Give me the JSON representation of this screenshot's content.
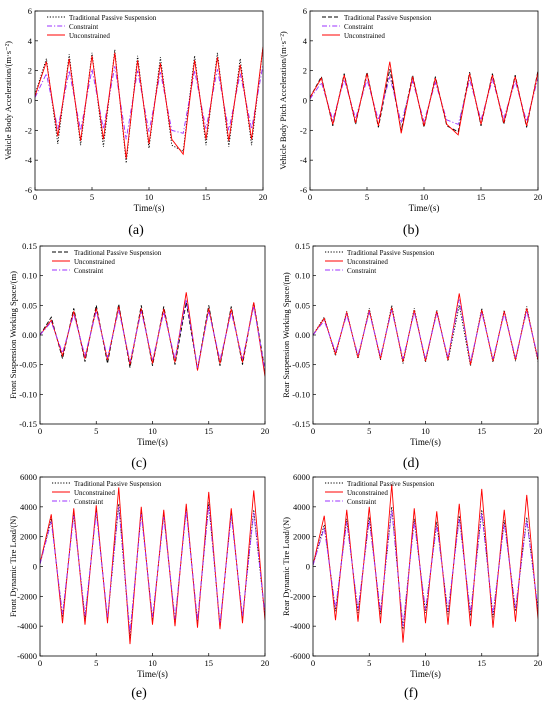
{
  "colors": {
    "passive": "#000000",
    "constraint": "#9b30ff",
    "unconstrained": "#ff0000",
    "axis": "#000000"
  },
  "chart_data": [
    {
      "id": "a",
      "type": "line",
      "panel_label": "(a)",
      "xlabel": "Time/(s)",
      "ylabel": "Vehicle Body Acceleration/(m·s⁻²)",
      "xlim": [
        0,
        20
      ],
      "ylim": [
        -6,
        6
      ],
      "xticks": [
        0,
        5,
        10,
        15,
        20
      ],
      "yticks": [
        -6,
        -4,
        -2,
        0,
        2,
        4,
        6
      ],
      "grid": false,
      "legend_position": "top-left",
      "series": [
        {
          "name": "Traditional Passive Suspension",
          "style": "dotted",
          "color_key": "passive",
          "x": [
            0,
            1,
            2,
            3,
            4,
            5,
            6,
            7,
            8,
            9,
            10,
            11,
            12,
            13,
            14,
            15,
            16,
            17,
            18,
            19,
            20
          ],
          "y": [
            0.4,
            2.8,
            -2.9,
            3.1,
            -3.0,
            3.2,
            -3.1,
            3.4,
            -4.2,
            3.0,
            -3.2,
            2.9,
            -3.0,
            -3.4,
            3.0,
            -3.0,
            3.2,
            -3.1,
            2.8,
            -3.0,
            3.6
          ]
        },
        {
          "name": "Constraint",
          "style": "dashdot",
          "color_key": "constraint",
          "x": [
            0,
            1,
            2,
            3,
            4,
            5,
            6,
            7,
            8,
            9,
            10,
            11,
            12,
            13,
            14,
            15,
            16,
            17,
            18,
            19,
            20
          ],
          "y": [
            0.2,
            1.8,
            -1.9,
            2.0,
            -2.0,
            2.1,
            -1.9,
            2.3,
            -2.6,
            2.0,
            -2.1,
            1.9,
            -2.0,
            -2.2,
            2.0,
            -1.9,
            2.1,
            -2.0,
            1.8,
            -1.9,
            2.4
          ]
        },
        {
          "name": "Unconstrained",
          "style": "solid",
          "color_key": "unconstrained",
          "x": [
            0,
            1,
            2,
            3,
            4,
            5,
            6,
            7,
            8,
            9,
            10,
            11,
            12,
            13,
            14,
            15,
            16,
            17,
            18,
            19,
            20
          ],
          "y": [
            0.3,
            2.6,
            -2.4,
            2.8,
            -2.7,
            3.0,
            -2.6,
            3.2,
            -3.9,
            2.7,
            -2.9,
            2.5,
            -2.6,
            -3.6,
            2.7,
            -2.6,
            2.9,
            -2.7,
            2.4,
            -2.6,
            3.6
          ]
        }
      ]
    },
    {
      "id": "b",
      "type": "line",
      "panel_label": "(b)",
      "xlabel": "Time/(s)",
      "ylabel": "Vehicle Body Pitch Acceleration/(m·s⁻²)",
      "xlim": [
        0,
        20
      ],
      "ylim": [
        -6,
        6
      ],
      "xticks": [
        0,
        5,
        10,
        15,
        20
      ],
      "yticks": [
        -6,
        -4,
        -2,
        0,
        2,
        4,
        6
      ],
      "grid": false,
      "legend_position": "top-left",
      "series": [
        {
          "name": "Traditional Passive Suspension",
          "style": "dashed",
          "color_key": "passive",
          "x": [
            0,
            1,
            2,
            3,
            4,
            5,
            6,
            7,
            8,
            9,
            10,
            11,
            12,
            13,
            14,
            15,
            16,
            17,
            18,
            19,
            20
          ],
          "y": [
            0.2,
            1.6,
            -1.7,
            1.8,
            -1.6,
            1.9,
            -1.8,
            2.1,
            -2.0,
            1.7,
            -1.8,
            1.6,
            -1.7,
            -2.1,
            1.9,
            -1.7,
            1.8,
            -1.6,
            1.7,
            -1.8,
            2.0
          ]
        },
        {
          "name": "Constraint",
          "style": "dashdot",
          "color_key": "constraint",
          "x": [
            0,
            1,
            2,
            3,
            4,
            5,
            6,
            7,
            8,
            9,
            10,
            11,
            12,
            13,
            14,
            15,
            16,
            17,
            18,
            19,
            20
          ],
          "y": [
            0.1,
            1.2,
            -1.3,
            1.4,
            -1.2,
            1.4,
            -1.3,
            1.6,
            -1.5,
            1.3,
            -1.4,
            1.2,
            -1.3,
            -1.6,
            1.4,
            -1.3,
            1.4,
            -1.2,
            1.3,
            -1.4,
            1.5
          ]
        },
        {
          "name": "Unconstrained",
          "style": "solid",
          "color_key": "unconstrained",
          "x": [
            0,
            1,
            2,
            3,
            4,
            5,
            6,
            7,
            8,
            9,
            10,
            11,
            12,
            13,
            14,
            15,
            16,
            17,
            18,
            19,
            20
          ],
          "y": [
            0.2,
            1.5,
            -1.6,
            1.7,
            -1.5,
            1.8,
            -1.7,
            2.6,
            -2.2,
            1.6,
            -1.7,
            1.5,
            -1.6,
            -2.3,
            1.8,
            -1.6,
            1.7,
            -1.5,
            1.6,
            -1.7,
            1.9
          ]
        }
      ]
    },
    {
      "id": "c",
      "type": "line",
      "panel_label": "(c)",
      "xlabel": "Time/(s)",
      "ylabel": "Front Suspension Working Space/(m)",
      "xlim": [
        0,
        20
      ],
      "ylim": [
        -0.15,
        0.15
      ],
      "xticks": [
        0,
        5,
        10,
        15,
        20
      ],
      "yticks": [
        -0.15,
        -0.1,
        -0.05,
        0.0,
        0.05,
        0.1,
        0.15
      ],
      "ytick_labels": [
        "-0.15",
        "-0.10",
        "-0.05",
        "0.00",
        "0.05",
        "0.10",
        "0.15"
      ],
      "grid": false,
      "legend_position": "top-left",
      "series": [
        {
          "name": "Traditional Passive Suspension",
          "style": "dashed",
          "color_key": "passive",
          "x": [
            0,
            1,
            2,
            3,
            4,
            5,
            6,
            7,
            8,
            9,
            10,
            11,
            12,
            13,
            14,
            15,
            16,
            17,
            18,
            19,
            20
          ],
          "y": [
            0.0,
            0.03,
            -0.04,
            0.045,
            -0.045,
            0.05,
            -0.048,
            0.052,
            -0.055,
            0.05,
            -0.052,
            0.048,
            -0.05,
            0.055,
            -0.058,
            0.05,
            -0.052,
            0.048,
            -0.05,
            0.055,
            -0.06
          ]
        },
        {
          "name": "Unconstrained",
          "style": "solid",
          "color_key": "unconstrained",
          "x": [
            0,
            1,
            2,
            3,
            4,
            5,
            6,
            7,
            8,
            9,
            10,
            11,
            12,
            13,
            14,
            15,
            16,
            17,
            18,
            19,
            20
          ],
          "y": [
            0.0,
            0.025,
            -0.035,
            0.04,
            -0.04,
            0.045,
            -0.042,
            0.048,
            -0.05,
            0.045,
            -0.048,
            0.044,
            -0.046,
            0.072,
            -0.06,
            0.045,
            -0.048,
            0.044,
            -0.046,
            0.055,
            -0.07
          ]
        },
        {
          "name": "Constraint",
          "style": "dashdot",
          "color_key": "constraint",
          "x": [
            0,
            1,
            2,
            3,
            4,
            5,
            6,
            7,
            8,
            9,
            10,
            11,
            12,
            13,
            14,
            15,
            16,
            17,
            18,
            19,
            20
          ],
          "y": [
            0.0,
            0.022,
            -0.03,
            0.035,
            -0.035,
            0.04,
            -0.038,
            0.042,
            -0.045,
            0.04,
            -0.042,
            0.038,
            -0.04,
            0.06,
            -0.055,
            0.04,
            -0.042,
            0.038,
            -0.04,
            0.048,
            -0.06
          ]
        }
      ]
    },
    {
      "id": "d",
      "type": "line",
      "panel_label": "(d)",
      "xlabel": "Time/(s)",
      "ylabel": "Rear Suspension Working Space/(m)",
      "xlim": [
        0,
        20
      ],
      "ylim": [
        -0.15,
        0.15
      ],
      "xticks": [
        0,
        5,
        10,
        15,
        20
      ],
      "yticks": [
        -0.15,
        -0.1,
        -0.05,
        0.0,
        0.05,
        0.1,
        0.15
      ],
      "ytick_labels": [
        "-0.15",
        "-0.10",
        "-0.05",
        "0.00",
        "0.05",
        "0.10",
        "0.15"
      ],
      "grid": false,
      "legend_position": "top-left",
      "series": [
        {
          "name": "Traditional Passive Suspension",
          "style": "dotted",
          "color_key": "passive",
          "x": [
            0,
            1,
            2,
            3,
            4,
            5,
            6,
            7,
            8,
            9,
            10,
            11,
            12,
            13,
            14,
            15,
            16,
            17,
            18,
            19,
            20
          ],
          "y": [
            0.0,
            0.03,
            -0.035,
            0.04,
            -0.04,
            0.045,
            -0.042,
            0.05,
            -0.048,
            0.045,
            -0.046,
            0.042,
            -0.044,
            0.05,
            -0.052,
            0.045,
            -0.046,
            0.042,
            -0.044,
            0.048,
            -0.045
          ]
        },
        {
          "name": "Unconstrained",
          "style": "solid",
          "color_key": "unconstrained",
          "x": [
            0,
            1,
            2,
            3,
            4,
            5,
            6,
            7,
            8,
            9,
            10,
            11,
            12,
            13,
            14,
            15,
            16,
            17,
            18,
            19,
            20
          ],
          "y": [
            0.0,
            0.028,
            -0.032,
            0.038,
            -0.038,
            0.042,
            -0.04,
            0.046,
            -0.045,
            0.042,
            -0.044,
            0.04,
            -0.042,
            0.07,
            -0.05,
            0.042,
            -0.044,
            0.04,
            -0.042,
            0.045,
            -0.042
          ]
        },
        {
          "name": "Constraint",
          "style": "dashdot",
          "color_key": "constraint",
          "x": [
            0,
            1,
            2,
            3,
            4,
            5,
            6,
            7,
            8,
            9,
            10,
            11,
            12,
            13,
            14,
            15,
            16,
            17,
            18,
            19,
            20
          ],
          "y": [
            0.0,
            0.024,
            -0.028,
            0.034,
            -0.034,
            0.038,
            -0.036,
            0.042,
            -0.04,
            0.038,
            -0.04,
            0.036,
            -0.038,
            0.06,
            -0.045,
            0.038,
            -0.04,
            0.036,
            -0.038,
            0.04,
            -0.038
          ]
        }
      ]
    },
    {
      "id": "e",
      "type": "line",
      "panel_label": "(e)",
      "xlabel": "Time/(s)",
      "ylabel": "Front Dynamic Tire Load/(N)",
      "xlim": [
        0,
        20
      ],
      "ylim": [
        -6000,
        6000
      ],
      "xticks": [
        0,
        5,
        10,
        15,
        20
      ],
      "yticks": [
        -6000,
        -4000,
        -2000,
        0,
        2000,
        4000,
        6000
      ],
      "grid": false,
      "legend_position": "top-left",
      "series": [
        {
          "name": "Traditional Passive Suspension",
          "style": "dotted",
          "color_key": "passive",
          "x": [
            0,
            1,
            2,
            3,
            4,
            5,
            6,
            7,
            8,
            9,
            10,
            11,
            12,
            13,
            14,
            15,
            16,
            17,
            18,
            19,
            20
          ],
          "y": [
            200,
            3200,
            -3400,
            3600,
            -3500,
            3800,
            -3600,
            4200,
            -4800,
            3700,
            -3600,
            3500,
            -3700,
            3900,
            -3800,
            4300,
            -4000,
            3600,
            -3500,
            3800,
            -3400
          ]
        },
        {
          "name": "Unconstrained",
          "style": "solid",
          "color_key": "unconstrained",
          "x": [
            0,
            1,
            2,
            3,
            4,
            5,
            6,
            7,
            8,
            9,
            10,
            11,
            12,
            13,
            14,
            15,
            16,
            17,
            18,
            19,
            20
          ],
          "y": [
            200,
            3500,
            -3800,
            3900,
            -3900,
            4100,
            -3800,
            5300,
            -5200,
            4000,
            -3900,
            3800,
            -4000,
            4200,
            -4100,
            5000,
            -4200,
            3900,
            -3800,
            5100,
            -3600
          ]
        },
        {
          "name": "Constraint",
          "style": "dashdot",
          "color_key": "constraint",
          "x": [
            0,
            1,
            2,
            3,
            4,
            5,
            6,
            7,
            8,
            9,
            10,
            11,
            12,
            13,
            14,
            15,
            16,
            17,
            18,
            19,
            20
          ],
          "y": [
            150,
            3000,
            -3200,
            3400,
            -3300,
            3600,
            -3400,
            4000,
            -4400,
            3500,
            -3400,
            3300,
            -3500,
            3700,
            -3600,
            4100,
            -3800,
            3400,
            -3300,
            3600,
            -3200
          ]
        }
      ]
    },
    {
      "id": "f",
      "type": "line",
      "panel_label": "(f)",
      "xlabel": "Time/(s)",
      "ylabel": "Rear Dynamic Tire Load/(N)",
      "xlim": [
        0,
        20
      ],
      "ylim": [
        -6000,
        6000
      ],
      "xticks": [
        0,
        5,
        10,
        15,
        20
      ],
      "yticks": [
        -6000,
        -4000,
        -2000,
        0,
        2000,
        4000,
        6000
      ],
      "grid": false,
      "legend_position": "top-left",
      "series": [
        {
          "name": "Traditional Passive Suspension",
          "style": "dotted",
          "color_key": "passive",
          "x": [
            0,
            1,
            2,
            3,
            4,
            5,
            6,
            7,
            8,
            9,
            10,
            11,
            12,
            13,
            14,
            15,
            16,
            17,
            18,
            19,
            20
          ],
          "y": [
            100,
            2800,
            -3000,
            3200,
            -3100,
            3300,
            -3200,
            4000,
            -4200,
            3200,
            -3100,
            3000,
            -3200,
            3400,
            -3300,
            3800,
            -3400,
            3100,
            -3000,
            3300,
            -3000
          ]
        },
        {
          "name": "Unconstrained",
          "style": "solid",
          "color_key": "unconstrained",
          "x": [
            0,
            1,
            2,
            3,
            4,
            5,
            6,
            7,
            8,
            9,
            10,
            11,
            12,
            13,
            14,
            15,
            16,
            17,
            18,
            19,
            20
          ],
          "y": [
            100,
            3400,
            -3600,
            3800,
            -3700,
            4000,
            -3800,
            5500,
            -5100,
            3900,
            -3800,
            3700,
            -3900,
            4200,
            -4000,
            5200,
            -4100,
            3800,
            -3700,
            4800,
            -3500
          ]
        },
        {
          "name": "Constraint",
          "style": "dashdot",
          "color_key": "constraint",
          "x": [
            0,
            1,
            2,
            3,
            4,
            5,
            6,
            7,
            8,
            9,
            10,
            11,
            12,
            13,
            14,
            15,
            16,
            17,
            18,
            19,
            20
          ],
          "y": [
            80,
            2600,
            -2800,
            3000,
            -2900,
            3100,
            -3000,
            3800,
            -4000,
            3000,
            -2900,
            2800,
            -3000,
            3200,
            -3100,
            3600,
            -3200,
            2900,
            -2800,
            3100,
            -2800
          ]
        }
      ]
    }
  ]
}
